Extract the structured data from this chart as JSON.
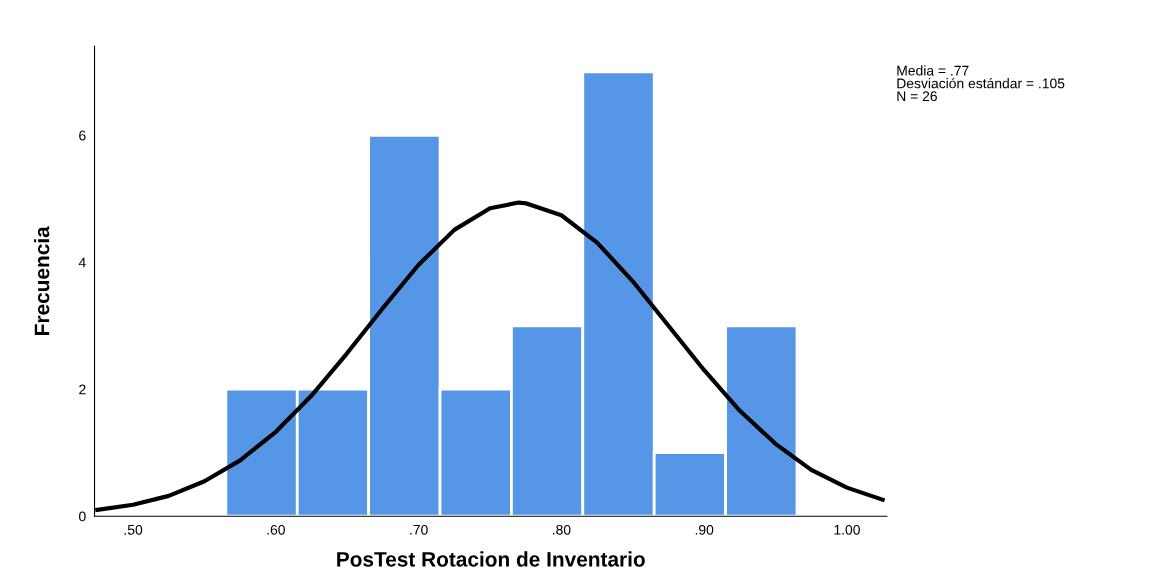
{
  "chart_data": {
    "type": "histogram",
    "xlabel": "PosTest Rotacion de Inventario",
    "ylabel": "Frecuencia",
    "bins": [
      0.565,
      0.615,
      0.665,
      0.715,
      0.765,
      0.815,
      0.865,
      0.915,
      0.965
    ],
    "values": [
      2,
      2,
      6,
      2,
      3,
      7,
      1,
      3
    ],
    "color": "#5596e6",
    "series": [
      {
        "type": "line",
        "color": "#000000",
        "x": [
          0.475,
          0.5,
          0.525,
          0.55,
          0.575,
          0.6,
          0.625,
          0.65,
          0.675,
          0.7,
          0.725,
          0.75,
          0.77,
          0.775,
          0.8,
          0.825,
          0.85,
          0.875,
          0.9,
          0.925,
          0.95,
          0.975,
          1.0,
          1.025
        ],
        "values": [
          0.1,
          0.18,
          0.32,
          0.55,
          0.88,
          1.33,
          1.9,
          2.57,
          3.28,
          3.96,
          4.51,
          4.85,
          4.94,
          4.93,
          4.74,
          4.31,
          3.7,
          3.0,
          2.3,
          1.66,
          1.14,
          0.73,
          0.45,
          0.26
        ]
      }
    ],
    "xlim": [
      0.473,
      1.028
    ],
    "ylim": [
      0,
      7.4
    ],
    "xticks": [
      {
        "value": 0.5,
        "label": ".50"
      },
      {
        "value": 0.6,
        "label": ".60"
      },
      {
        "value": 0.7,
        "label": ".70"
      },
      {
        "value": 0.8,
        "label": ".80"
      },
      {
        "value": 0.9,
        "label": ".90"
      },
      {
        "value": 1.0,
        "label": "1.00"
      }
    ],
    "yticks": [
      0,
      2,
      4,
      6
    ],
    "annotations": [
      "Media = .77",
      "Desviación estándar = .105",
      "N = 26"
    ]
  }
}
